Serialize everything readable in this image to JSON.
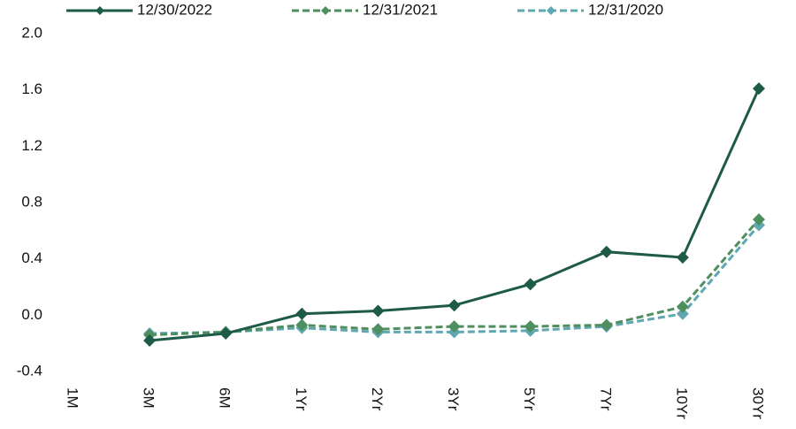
{
  "chart_data": {
    "type": "line",
    "categories": [
      "1M",
      "3M",
      "6M",
      "1Yr",
      "2Yr",
      "3Yr",
      "5Yr",
      "7Yr",
      "10Yr",
      "30Yr"
    ],
    "series": [
      {
        "name": "12/30/2022",
        "color": "#1e5a48",
        "linestyle": "solid",
        "values": [
          null,
          -0.18,
          -0.13,
          0.01,
          0.03,
          0.07,
          0.22,
          0.45,
          0.41,
          1.61
        ]
      },
      {
        "name": "12/31/2021",
        "color": "#4f8f5f",
        "linestyle": "dashed",
        "values": [
          null,
          -0.14,
          -0.12,
          -0.07,
          -0.1,
          -0.08,
          -0.08,
          -0.07,
          0.06,
          0.68
        ]
      },
      {
        "name": "12/31/2020",
        "color": "#5fa8b2",
        "linestyle": "dashed",
        "values": [
          null,
          -0.13,
          -0.12,
          -0.09,
          -0.12,
          -0.12,
          -0.11,
          -0.08,
          0.01,
          0.64
        ]
      }
    ],
    "ylim": [
      -0.4,
      2.0
    ],
    "yticks": [
      -0.4,
      {
        "value": 0,
        "label": "0.0"
      },
      0.4,
      0.8,
      1.2,
      1.6,
      {
        "value": 2,
        "label": "2.0"
      }
    ],
    "legend": "top",
    "grid": false
  }
}
